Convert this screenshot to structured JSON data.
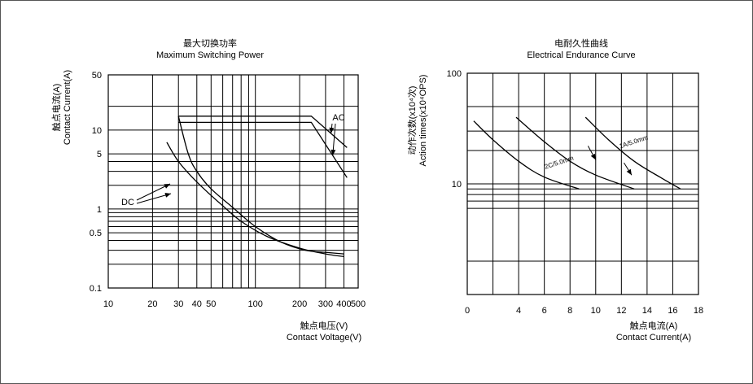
{
  "charts": [
    {
      "type": "line",
      "title_cn": "最大切换功率",
      "title": "Maximum Switching Power",
      "ylabel_cn": "触点电流(A)",
      "ylabel": "Contact Current(A)",
      "xlabel_cn": "触点电压(V)",
      "xlabel": "Contact Voltage(V)",
      "x_scale": "log",
      "y_scale": "log",
      "xlim": [
        10,
        500
      ],
      "ylim": [
        0.1,
        50
      ],
      "x_ticks": [
        10,
        20,
        30,
        40,
        50,
        100,
        200,
        300,
        400,
        500
      ],
      "x_tick_labels": [
        "10",
        "20",
        "30",
        "40",
        "50",
        "100",
        "200",
        "300",
        "400",
        "500"
      ],
      "y_ticks": [
        0.1,
        0.5,
        1,
        5,
        10,
        50
      ],
      "y_tick_labels": [
        "0.1",
        "0.5",
        "1",
        "5",
        "10",
        "50"
      ],
      "x_grid": [
        20,
        30,
        40,
        50,
        60,
        70,
        80,
        90,
        100,
        200,
        300,
        400
      ],
      "y_grid": [
        0.2,
        0.3,
        0.4,
        0.5,
        0.6,
        0.7,
        0.8,
        0.9,
        1,
        2,
        3,
        4,
        5,
        10,
        20
      ],
      "series": [
        {
          "name": "AC",
          "points": [
            [
              30,
              15
            ],
            [
              210,
              15
            ],
            [
              240,
              15
            ],
            [
              420,
              6
            ]
          ]
        },
        {
          "name": "AC",
          "points": [
            [
              30,
              12.5
            ],
            [
              240,
              12.5
            ],
            [
              420,
              2.5
            ]
          ]
        },
        {
          "name": "DC",
          "points": [
            [
              30,
              15
            ],
            [
              35,
              5
            ],
            [
              40,
              3
            ],
            [
              50,
              1.8
            ],
            [
              70,
              1.05
            ],
            [
              100,
              0.6
            ],
            [
              150,
              0.38
            ],
            [
              220,
              0.3
            ],
            [
              320,
              0.28
            ],
            [
              400,
              0.27
            ]
          ]
        },
        {
          "name": "DC",
          "points": [
            [
              25,
              7
            ],
            [
              30,
              4
            ],
            [
              40,
              2.2
            ],
            [
              60,
              1.1
            ],
            [
              80,
              0.7
            ],
            [
              120,
              0.45
            ],
            [
              200,
              0.32
            ],
            [
              300,
              0.27
            ],
            [
              400,
              0.25
            ]
          ]
        }
      ],
      "annotations": [
        {
          "text": "AC",
          "x": 460,
          "y": 13
        },
        {
          "text": "DC",
          "x": 17,
          "y": 1.7
        }
      ]
    },
    {
      "type": "line",
      "title_cn": "电耐久性曲线",
      "title": "Electrical Endurance Curve",
      "ylabel_cn": "动作次数(x10⁴次)",
      "ylabel": "Action times(x10⁴OPS)",
      "xlabel_cn": "触点电流(A)",
      "xlabel": "Contact Current(A)",
      "x_scale": "linear",
      "y_scale": "log",
      "xlim": [
        0,
        18
      ],
      "ylim": [
        1,
        100
      ],
      "x_ticks": [
        0,
        2,
        4,
        6,
        8,
        10,
        12,
        14,
        16,
        18
      ],
      "x_tick_labels": [
        "0",
        "4",
        "6",
        "8",
        "10",
        "12",
        "14",
        "16",
        "18"
      ],
      "x_tick_label_values": [
        0,
        4,
        6,
        8,
        10,
        12,
        14,
        16,
        18
      ],
      "y_ticks": [
        10,
        100
      ],
      "y_tick_labels": [
        "10",
        "100"
      ],
      "x_grid": [
        2,
        4,
        6,
        8,
        10,
        12,
        14,
        16
      ],
      "y_grid": [
        2,
        6,
        7,
        8,
        9,
        10,
        20,
        30,
        50
      ],
      "series": [
        {
          "name": "",
          "points": [
            [
              0.5,
              37
            ],
            [
              2,
              25
            ],
            [
              4,
              16
            ],
            [
              6,
              11.5
            ],
            [
              8.7,
              9
            ]
          ]
        },
        {
          "name": "2C/5.0mm",
          "points": [
            [
              3.8,
              40
            ],
            [
              6,
              24
            ],
            [
              8,
              16
            ],
            [
              10,
              12
            ],
            [
              13,
              9
            ]
          ]
        },
        {
          "name": "1A/5.0mm",
          "points": [
            [
              9.2,
              40
            ],
            [
              11,
              25
            ],
            [
              13,
              16
            ],
            [
              15,
              11.5
            ],
            [
              16.6,
              9
            ]
          ]
        }
      ],
      "annotations": [
        {
          "text": "2C/5.0mm",
          "x": 7.2,
          "y": 15
        },
        {
          "text": "1A/5.0mm",
          "x": 13,
          "y": 23
        }
      ]
    }
  ]
}
